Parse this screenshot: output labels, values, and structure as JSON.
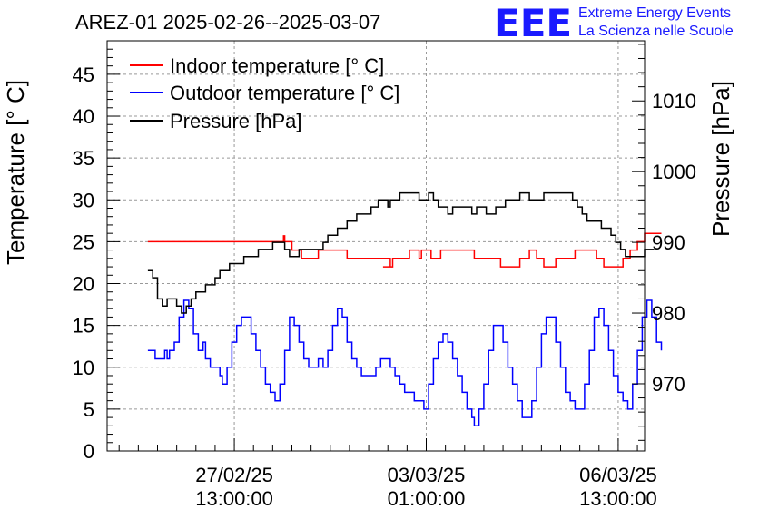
{
  "header": {
    "title": "AREZ-01 2025-02-26--2025-03-07",
    "logo_mark": "EEE",
    "logo_line1": "Extreme Energy Events",
    "logo_line2": "La Scienza nelle Scuole"
  },
  "colors": {
    "indoor": "#ff0000",
    "outdoor": "#0000ff",
    "pressure": "#000000",
    "logo": "#1a1aff",
    "grid": "#999999"
  },
  "chart_data": {
    "type": "line",
    "title": "AREZ-01 2025-02-26--2025-03-07",
    "ylabel": "Temperature [° C]",
    "y2label": "Pressure [hPa]",
    "ylim": [
      0,
      49
    ],
    "y2lim": [
      960.5,
      1018.5
    ],
    "xlim_hours": [
      0,
      224
    ],
    "x_ticks": [
      {
        "hour": 53,
        "line1": "27/02/25",
        "line2": "13:00:00"
      },
      {
        "hour": 133,
        "line1": "03/03/25",
        "line2": "01:00:00"
      },
      {
        "hour": 213,
        "line1": "06/03/25",
        "line2": "13:00:00"
      }
    ],
    "y_ticks": [
      0,
      5,
      10,
      15,
      20,
      25,
      30,
      35,
      40,
      45
    ],
    "y2_ticks": [
      970,
      980,
      990,
      1000,
      1010
    ],
    "grid": true,
    "legend_placement": "top-left",
    "series": [
      {
        "name": "Indoor temperature [° C]",
        "axis": "left",
        "points": [
          [
            17,
            25
          ],
          [
            73,
            25
          ],
          [
            73.5,
            25.7
          ],
          [
            74,
            25
          ],
          [
            75,
            25
          ],
          [
            77,
            24
          ],
          [
            80,
            24
          ],
          [
            81,
            23
          ],
          [
            87,
            23
          ],
          [
            88,
            24
          ],
          [
            99,
            24
          ],
          [
            100,
            23
          ],
          [
            117,
            23
          ],
          [
            118,
            22
          ],
          [
            116,
            22
          ],
          [
            115,
            22
          ],
          [
            118,
            22
          ],
          [
            119,
            23
          ],
          [
            125,
            23
          ],
          [
            126,
            24
          ],
          [
            129,
            24
          ],
          [
            130,
            23
          ],
          [
            131,
            24
          ],
          [
            134,
            24
          ],
          [
            135,
            23
          ],
          [
            138,
            23
          ],
          [
            139,
            24
          ],
          [
            152,
            24
          ],
          [
            153,
            23
          ],
          [
            163,
            23
          ],
          [
            164,
            22
          ],
          [
            171,
            22
          ],
          [
            172,
            23
          ],
          [
            175,
            23
          ],
          [
            176,
            24
          ],
          [
            178,
            24
          ],
          [
            179,
            23
          ],
          [
            181,
            23
          ],
          [
            182,
            22
          ],
          [
            186,
            22
          ],
          [
            187,
            23
          ],
          [
            194,
            23
          ],
          [
            195,
            24
          ],
          [
            203,
            24
          ],
          [
            204,
            23
          ],
          [
            206,
            23
          ],
          [
            207,
            22
          ],
          [
            214,
            22
          ],
          [
            215,
            23
          ],
          [
            217,
            23
          ],
          [
            218,
            24
          ],
          [
            220,
            24
          ],
          [
            221,
            25
          ],
          [
            223,
            25
          ],
          [
            224,
            26
          ],
          [
            231,
            26
          ]
        ]
      },
      {
        "name": "Outdoor temperature [° C]",
        "axis": "left",
        "points": [
          [
            17,
            12
          ],
          [
            19,
            12
          ],
          [
            20,
            11
          ],
          [
            23,
            11
          ],
          [
            24,
            12
          ],
          [
            25,
            11
          ],
          [
            26,
            12
          ],
          [
            28,
            13
          ],
          [
            30,
            16
          ],
          [
            32,
            18
          ],
          [
            34,
            17
          ],
          [
            36,
            14
          ],
          [
            38,
            12
          ],
          [
            40,
            13
          ],
          [
            41,
            11
          ],
          [
            43,
            10
          ],
          [
            45,
            10
          ],
          [
            47,
            9
          ],
          [
            48,
            8
          ],
          [
            50,
            10
          ],
          [
            52,
            13
          ],
          [
            54,
            15
          ],
          [
            56,
            16
          ],
          [
            58,
            16
          ],
          [
            60,
            14
          ],
          [
            62,
            12
          ],
          [
            64,
            10
          ],
          [
            66,
            8
          ],
          [
            68,
            7
          ],
          [
            70,
            6
          ],
          [
            72,
            8
          ],
          [
            74,
            12
          ],
          [
            76,
            16
          ],
          [
            78,
            15
          ],
          [
            80,
            13
          ],
          [
            82,
            11
          ],
          [
            84,
            10
          ],
          [
            86,
            10
          ],
          [
            88,
            11
          ],
          [
            90,
            10
          ],
          [
            92,
            12
          ],
          [
            94,
            15
          ],
          [
            96,
            17
          ],
          [
            98,
            16
          ],
          [
            100,
            13
          ],
          [
            102,
            11
          ],
          [
            104,
            10
          ],
          [
            106,
            9
          ],
          [
            108,
            9
          ],
          [
            110,
            9
          ],
          [
            112,
            10
          ],
          [
            114,
            11
          ],
          [
            116,
            11
          ],
          [
            118,
            10
          ],
          [
            120,
            9
          ],
          [
            122,
            8
          ],
          [
            124,
            7
          ],
          [
            126,
            7
          ],
          [
            128,
            6
          ],
          [
            130,
            6
          ],
          [
            132,
            5
          ],
          [
            134,
            8
          ],
          [
            136,
            11
          ],
          [
            138,
            13
          ],
          [
            140,
            14
          ],
          [
            142,
            13
          ],
          [
            144,
            11
          ],
          [
            146,
            9
          ],
          [
            148,
            7
          ],
          [
            150,
            5
          ],
          [
            152,
            4
          ],
          [
            153,
            3
          ],
          [
            155,
            5
          ],
          [
            157,
            8
          ],
          [
            159,
            12
          ],
          [
            161,
            15
          ],
          [
            163,
            15
          ],
          [
            165,
            13
          ],
          [
            167,
            10
          ],
          [
            169,
            8
          ],
          [
            171,
            6
          ],
          [
            173,
            4
          ],
          [
            175,
            4
          ],
          [
            177,
            6
          ],
          [
            179,
            10
          ],
          [
            181,
            14
          ],
          [
            183,
            16
          ],
          [
            185,
            16
          ],
          [
            187,
            13
          ],
          [
            189,
            10
          ],
          [
            191,
            7
          ],
          [
            193,
            6
          ],
          [
            195,
            5
          ],
          [
            197,
            5
          ],
          [
            199,
            8
          ],
          [
            201,
            12
          ],
          [
            203,
            16
          ],
          [
            205,
            17
          ],
          [
            207,
            15
          ],
          [
            209,
            12
          ],
          [
            211,
            9
          ],
          [
            213,
            7
          ],
          [
            215,
            6
          ],
          [
            217,
            5
          ],
          [
            219,
            8
          ],
          [
            221,
            12
          ],
          [
            223,
            16
          ],
          [
            225,
            18
          ],
          [
            227,
            16
          ],
          [
            229,
            13
          ],
          [
            231,
            12
          ]
        ]
      },
      {
        "name": "Pressure [hPa]",
        "axis": "right",
        "points": [
          [
            17,
            986
          ],
          [
            19,
            985
          ],
          [
            21,
            982
          ],
          [
            23,
            981
          ],
          [
            25,
            982
          ],
          [
            27,
            982
          ],
          [
            29,
            981
          ],
          [
            31,
            980
          ],
          [
            33,
            981
          ],
          [
            35,
            982
          ],
          [
            37,
            983
          ],
          [
            39,
            983
          ],
          [
            41,
            984
          ],
          [
            43,
            984
          ],
          [
            45,
            985
          ],
          [
            47,
            986
          ],
          [
            49,
            986
          ],
          [
            51,
            987
          ],
          [
            53,
            987
          ],
          [
            55,
            987
          ],
          [
            57,
            988
          ],
          [
            60,
            988
          ],
          [
            63,
            989
          ],
          [
            66,
            989
          ],
          [
            69,
            990
          ],
          [
            72,
            990
          ],
          [
            74,
            989
          ],
          [
            76,
            988
          ],
          [
            78,
            988
          ],
          [
            80,
            989
          ],
          [
            82,
            989
          ],
          [
            84,
            989
          ],
          [
            86,
            989
          ],
          [
            88,
            989
          ],
          [
            90,
            990
          ],
          [
            92,
            991
          ],
          [
            94,
            991
          ],
          [
            96,
            992
          ],
          [
            98,
            992
          ],
          [
            100,
            993
          ],
          [
            102,
            993
          ],
          [
            104,
            994
          ],
          [
            106,
            994
          ],
          [
            108,
            994
          ],
          [
            110,
            995
          ],
          [
            112,
            995
          ],
          [
            113,
            996
          ],
          [
            115,
            996
          ],
          [
            117,
            995
          ],
          [
            118,
            996
          ],
          [
            120,
            996
          ],
          [
            122,
            997
          ],
          [
            124,
            997
          ],
          [
            126,
            997
          ],
          [
            128,
            997
          ],
          [
            130,
            996
          ],
          [
            132,
            996
          ],
          [
            134,
            997
          ],
          [
            136,
            996
          ],
          [
            138,
            995
          ],
          [
            140,
            995
          ],
          [
            142,
            994
          ],
          [
            144,
            995
          ],
          [
            146,
            995
          ],
          [
            148,
            995
          ],
          [
            150,
            995
          ],
          [
            152,
            994
          ],
          [
            154,
            995
          ],
          [
            156,
            995
          ],
          [
            158,
            994
          ],
          [
            160,
            994
          ],
          [
            162,
            995
          ],
          [
            164,
            995
          ],
          [
            166,
            996
          ],
          [
            168,
            996
          ],
          [
            170,
            996
          ],
          [
            172,
            997
          ],
          [
            174,
            997
          ],
          [
            176,
            996
          ],
          [
            178,
            996
          ],
          [
            180,
            996
          ],
          [
            182,
            997
          ],
          [
            184,
            997
          ],
          [
            186,
            997
          ],
          [
            188,
            997
          ],
          [
            190,
            997
          ],
          [
            192,
            997
          ],
          [
            194,
            996
          ],
          [
            196,
            995
          ],
          [
            198,
            994
          ],
          [
            200,
            993
          ],
          [
            202,
            993
          ],
          [
            204,
            993
          ],
          [
            206,
            992
          ],
          [
            208,
            992
          ],
          [
            210,
            991
          ],
          [
            212,
            990
          ],
          [
            214,
            989
          ],
          [
            216,
            988
          ],
          [
            218,
            988
          ],
          [
            220,
            988
          ],
          [
            222,
            988
          ],
          [
            224,
            989
          ],
          [
            226,
            989
          ],
          [
            228,
            989
          ]
        ]
      }
    ]
  }
}
